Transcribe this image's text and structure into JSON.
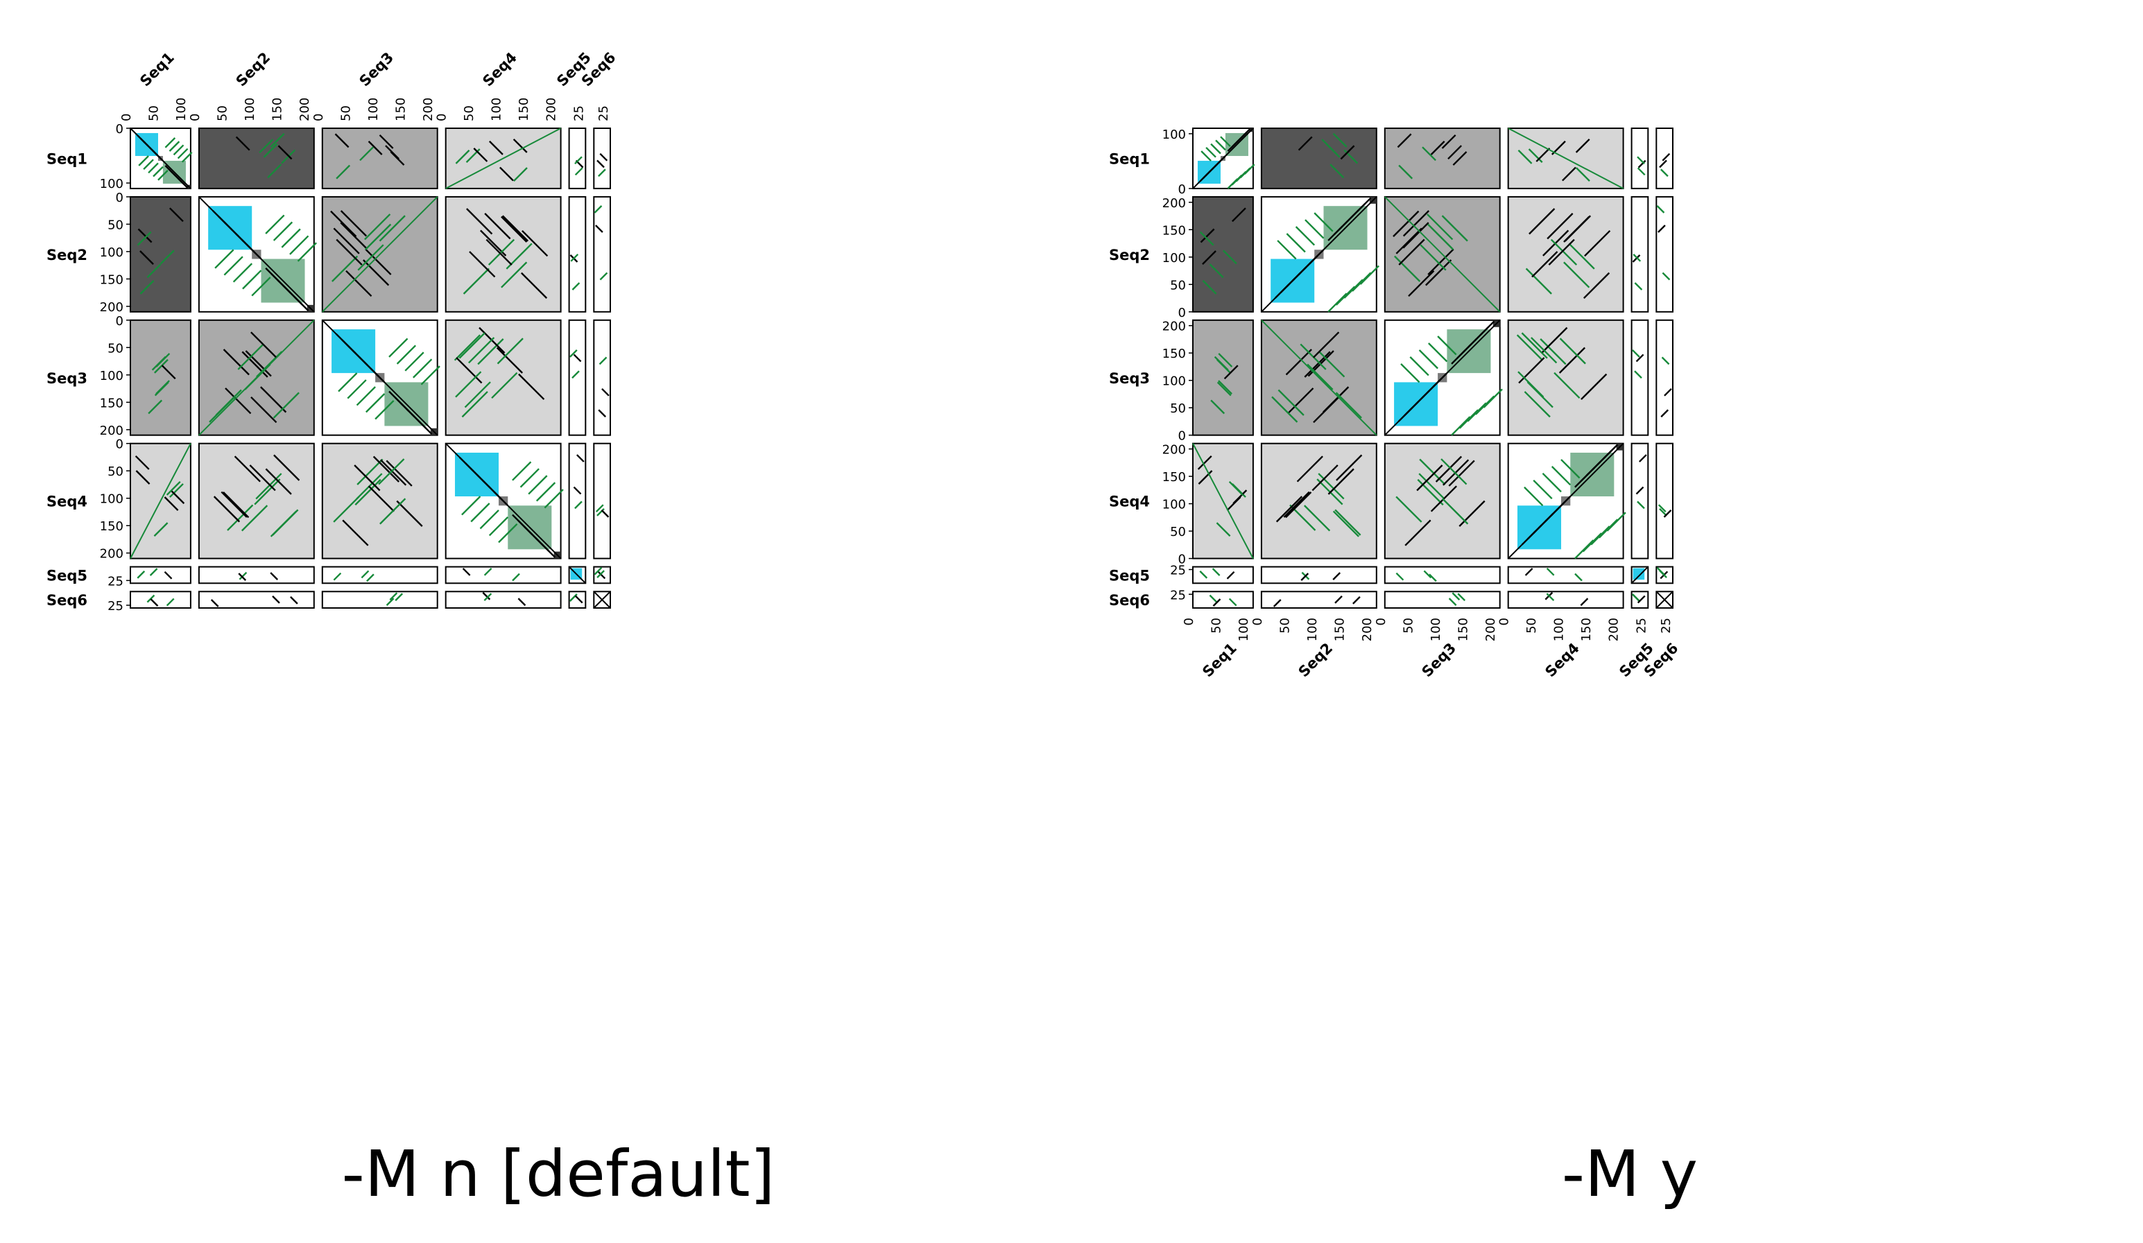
{
  "sequences": [
    {
      "name": "Seq1",
      "length": 110,
      "ticks": [
        0,
        50,
        100
      ],
      "ticks_left": [
        0,
        100
      ]
    },
    {
      "name": "Seq2",
      "length": 210,
      "ticks": [
        0,
        50,
        100,
        150,
        200
      ],
      "ticks_left": [
        0,
        50,
        100,
        150,
        200
      ]
    },
    {
      "name": "Seq3",
      "length": 210,
      "ticks": [
        0,
        50,
        100,
        150,
        200
      ],
      "ticks_left": [
        0,
        50,
        100,
        150,
        200
      ]
    },
    {
      "name": "Seq4",
      "length": 210,
      "ticks": [
        0,
        50,
        100,
        150,
        200
      ],
      "ticks_left": [
        0,
        50,
        100,
        150,
        200
      ]
    },
    {
      "name": "Seq5",
      "length": 30,
      "ticks": [
        25
      ],
      "ticks_left": [
        25
      ]
    },
    {
      "name": "Seq6",
      "length": 30,
      "ticks": [
        25
      ],
      "ticks_left": [
        25
      ]
    }
  ],
  "colors": {
    "similarity_dark": "#555555",
    "similarity_mid": "#aaaaaa",
    "similarity_light": "#d6d6d6",
    "self_panel": "#ffffff",
    "repeat_cyan": "#2bcbeb",
    "repeat_green": "#81b596",
    "repeat_gray": "#7a7a7a",
    "forward_line": "#000000",
    "reverse_line": "#178a3a"
  },
  "panels_left": {
    "caption": "-M n [default]",
    "mirror_y": false
  },
  "panels_right": {
    "caption": "-M y",
    "mirror_y": true
  },
  "pair_shading": [
    [
      "self",
      "dark",
      "mid",
      "light",
      "white",
      "white"
    ],
    [
      "dark",
      "self",
      "mid",
      "light",
      "white",
      "white"
    ],
    [
      "mid",
      "mid",
      "self",
      "light",
      "white",
      "white"
    ],
    [
      "light",
      "light",
      "light",
      "self",
      "white",
      "white"
    ],
    [
      "white",
      "white",
      "white",
      "white",
      "self",
      "white"
    ],
    [
      "white",
      "white",
      "white",
      "white",
      "white",
      "self"
    ]
  ]
}
